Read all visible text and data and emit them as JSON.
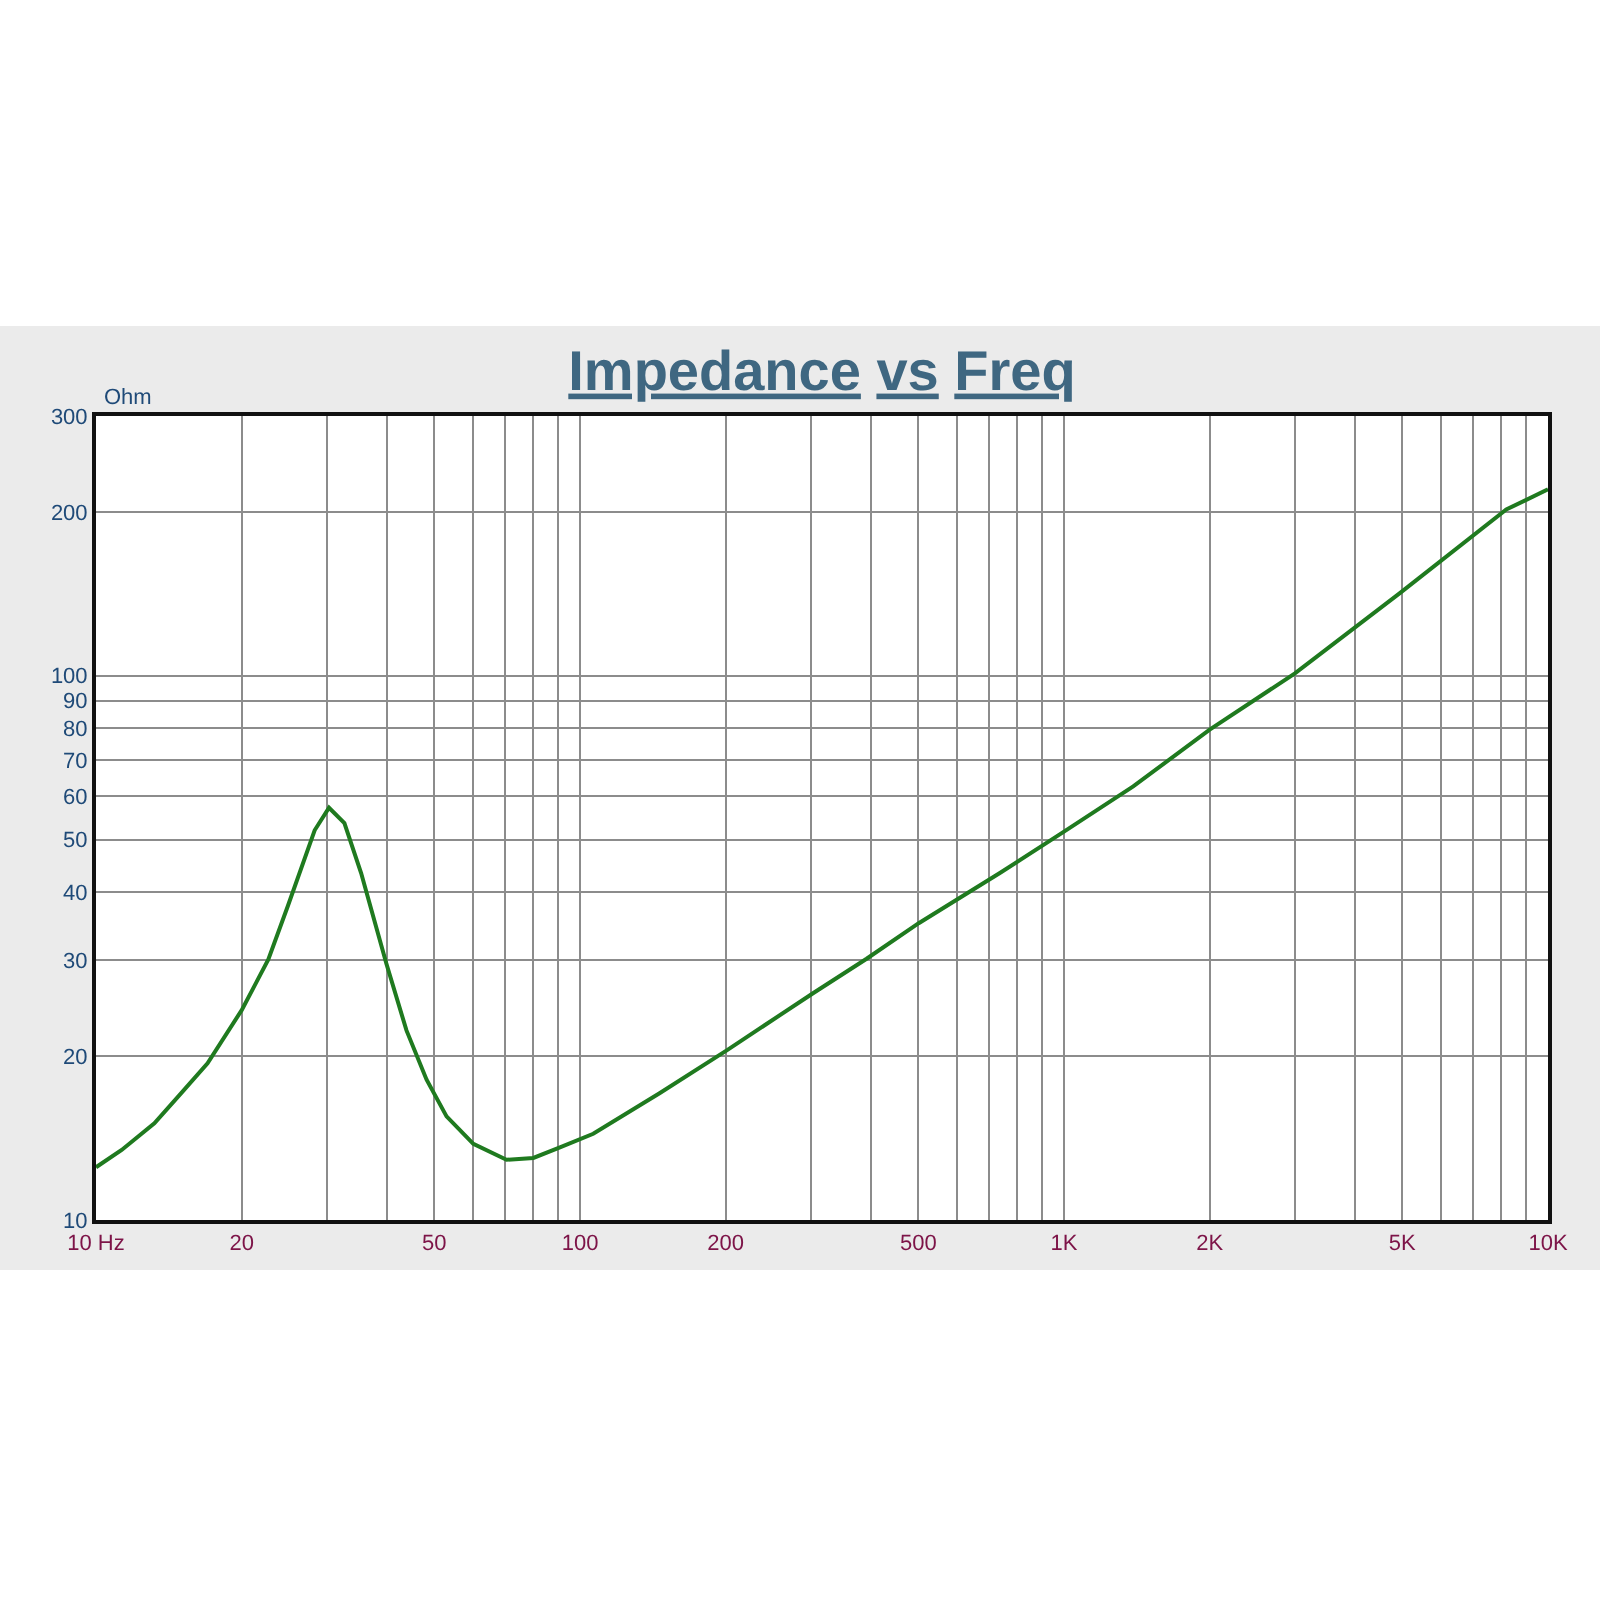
{
  "chart_data": {
    "type": "line",
    "title": "Impedance vs Freq",
    "ylabel": "Ohm",
    "x": [
      10,
      11.3,
      13.2,
      15,
      17,
      20,
      22.7,
      24.9,
      28.3,
      30.3,
      32.6,
      35.3,
      39.8,
      43.8,
      48.2,
      53,
      60.2,
      70.5,
      80.1,
      90.9,
      106.5,
      146,
      201,
      303,
      391,
      501,
      737,
      1000,
      1390,
      2000,
      3000,
      4950,
      8200,
      10000
    ],
    "series": [
      {
        "color": "#1f7a1f",
        "values": [
          12.5,
          13.45,
          15.05,
          17.1,
          19.4,
          24.3,
          30.1,
          37.7,
          52,
          57.2,
          53.6,
          43.4,
          29.6,
          22.3,
          18.1,
          15.5,
          13.8,
          12.9,
          13,
          13.6,
          14.4,
          17.1,
          20.5,
          26.1,
          30.2,
          35.1,
          43.4,
          51.7,
          62.6,
          79.6,
          101,
          142,
          202,
          220
        ]
      }
    ],
    "log": "xy",
    "xlim": [
      10,
      10000
    ],
    "ylim": [
      10,
      300
    ],
    "xticks": [
      {
        "value": 10,
        "label": "10 Hz"
      },
      20,
      {
        "value": 30,
        "label": null
      },
      {
        "value": 40,
        "label": null
      },
      50,
      {
        "value": 60,
        "label": null
      },
      {
        "value": 70,
        "label": null
      },
      {
        "value": 80,
        "label": null
      },
      {
        "value": 90,
        "label": null
      },
      100,
      200,
      {
        "value": 300,
        "label": null
      },
      {
        "value": 400,
        "label": null
      },
      500,
      {
        "value": 600,
        "label": null
      },
      {
        "value": 700,
        "label": null
      },
      {
        "value": 800,
        "label": null
      },
      {
        "value": 900,
        "label": null
      },
      {
        "value": 1000,
        "label": "1K"
      },
      {
        "value": 2000,
        "label": "2K"
      },
      {
        "value": 3000,
        "label": null
      },
      {
        "value": 4000,
        "label": null
      },
      {
        "value": 5000,
        "label": "5K"
      },
      {
        "value": 6000,
        "label": null
      },
      {
        "value": 7000,
        "label": null
      },
      {
        "value": 8000,
        "label": null
      },
      {
        "value": 9000,
        "label": null
      },
      {
        "value": 10000,
        "label": "10K"
      }
    ],
    "yticks": [
      10,
      20,
      30,
      40,
      50,
      60,
      70,
      80,
      90,
      100,
      200,
      300
    ],
    "grid": true,
    "marker": "none",
    "line_style": "solid"
  }
}
